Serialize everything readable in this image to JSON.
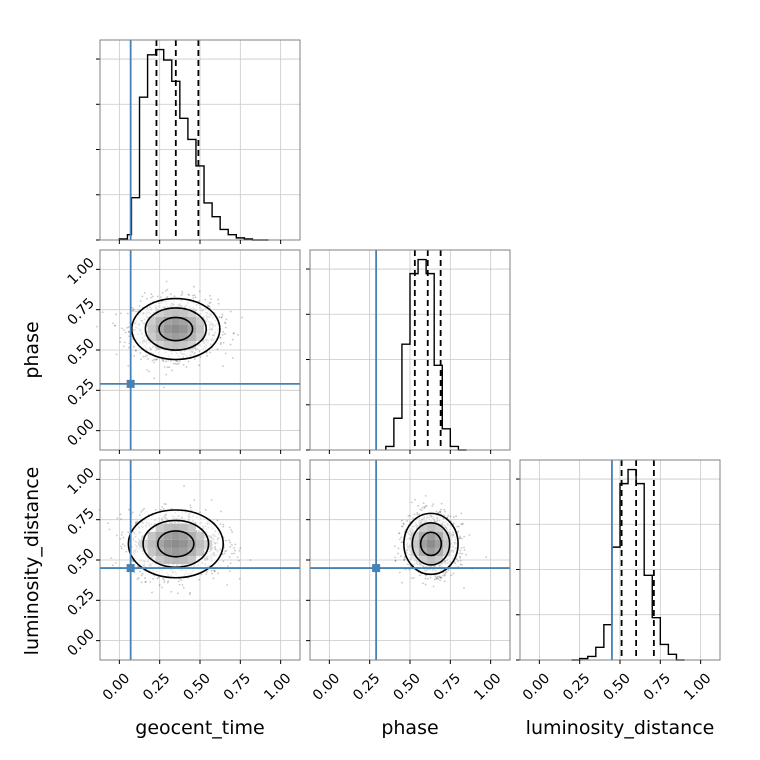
{
  "chart_data": {
    "type": "corner",
    "parameters": [
      "geocent_time",
      "phase",
      "luminosity_distance"
    ],
    "tick_labels": [
      "0.00",
      "0.25",
      "0.50",
      "0.75",
      "1.00"
    ],
    "xlim": [
      -0.12,
      1.12
    ],
    "ylim": [
      -0.12,
      1.12
    ],
    "truth_color": "#4682b4",
    "truths": {
      "geocent_time": 0.07,
      "phase": 0.29,
      "luminosity_distance": 0.45
    },
    "grid": true,
    "histograms": [
      {
        "parameter": "geocent_time",
        "bin_edges": [
          0.0,
          0.05,
          0.075,
          0.125,
          0.175,
          0.225,
          0.275,
          0.325,
          0.375,
          0.425,
          0.475,
          0.525,
          0.575,
          0.625,
          0.675,
          0.725,
          0.775,
          0.825,
          0.875,
          0.925
        ],
        "counts": [
          1,
          5,
          40,
          135,
          175,
          180,
          170,
          150,
          115,
          95,
          70,
          35,
          22,
          10,
          5,
          2,
          1,
          0,
          0
        ],
        "quantiles": [
          0.23,
          0.35,
          0.49
        ]
      },
      {
        "parameter": "phase",
        "bin_edges": [
          0.35,
          0.4,
          0.45,
          0.5,
          0.55,
          0.6,
          0.65,
          0.7,
          0.75,
          0.8,
          0.85
        ],
        "counts": [
          5,
          45,
          150,
          250,
          270,
          250,
          120,
          30,
          5,
          0
        ],
        "quantiles": [
          0.53,
          0.61,
          0.69
        ]
      },
      {
        "parameter": "luminosity_distance",
        "bin_edges": [
          0.2,
          0.25,
          0.3,
          0.35,
          0.4,
          0.45,
          0.5,
          0.55,
          0.6,
          0.65,
          0.7,
          0.75,
          0.8,
          0.85,
          0.9
        ],
        "counts": [
          0,
          2,
          5,
          18,
          50,
          160,
          250,
          270,
          250,
          120,
          60,
          22,
          8,
          0
        ],
        "quantiles": [
          0.51,
          0.6,
          0.71
        ]
      }
    ],
    "scatter_panels": [
      {
        "x": "geocent_time",
        "y": "phase",
        "center": [
          0.35,
          0.63
        ],
        "spread": [
          0.13,
          0.09
        ]
      },
      {
        "x": "geocent_time",
        "y": "luminosity_distance",
        "center": [
          0.35,
          0.6
        ],
        "spread": [
          0.14,
          0.1
        ]
      },
      {
        "x": "phase",
        "y": "luminosity_distance",
        "center": [
          0.63,
          0.6
        ],
        "spread": [
          0.08,
          0.09
        ]
      }
    ]
  }
}
